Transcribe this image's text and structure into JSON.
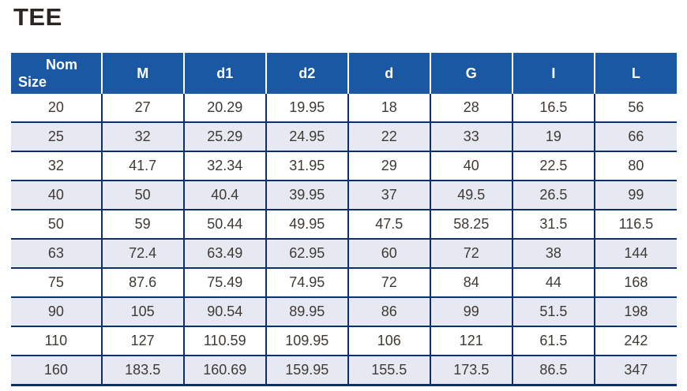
{
  "page": {
    "title": "TEE"
  },
  "table": {
    "header": {
      "col0_line1": "Nom",
      "col0_line2": "Size",
      "columns": [
        "M",
        "d1",
        "d2",
        "d",
        "G",
        "I",
        "L"
      ]
    },
    "rows": [
      [
        "20",
        "27",
        "20.29",
        "19.95",
        "18",
        "28",
        "16.5",
        "56"
      ],
      [
        "25",
        "32",
        "25.29",
        "24.95",
        "22",
        "33",
        "19",
        "66"
      ],
      [
        "32",
        "41.7",
        "32.34",
        "31.95",
        "29",
        "40",
        "22.5",
        "80"
      ],
      [
        "40",
        "50",
        "40.4",
        "39.95",
        "37",
        "49.5",
        "26.5",
        "99"
      ],
      [
        "50",
        "59",
        "50.44",
        "49.95",
        "47.5",
        "58.25",
        "31.5",
        "116.5"
      ],
      [
        "63",
        "72.4",
        "63.49",
        "62.95",
        "60",
        "72",
        "38",
        "144"
      ],
      [
        "75",
        "87.6",
        "75.49",
        "74.95",
        "72",
        "84",
        "44",
        "168"
      ],
      [
        "90",
        "105",
        "90.54",
        "89.95",
        "86",
        "99",
        "51.5",
        "198"
      ],
      [
        "110",
        "127",
        "110.59",
        "109.95",
        "106",
        "121",
        "61.5",
        "242"
      ],
      [
        "160",
        "183.5",
        "160.69",
        "159.95",
        "155.5",
        "173.5",
        "86.5",
        "347"
      ]
    ]
  },
  "colors": {
    "header_bg": "#1a58a4",
    "border": "#0c2f6e",
    "row_alt_bg": "#e7e9f2",
    "body_text": "#3e3934",
    "header_text": "#ffffff"
  }
}
